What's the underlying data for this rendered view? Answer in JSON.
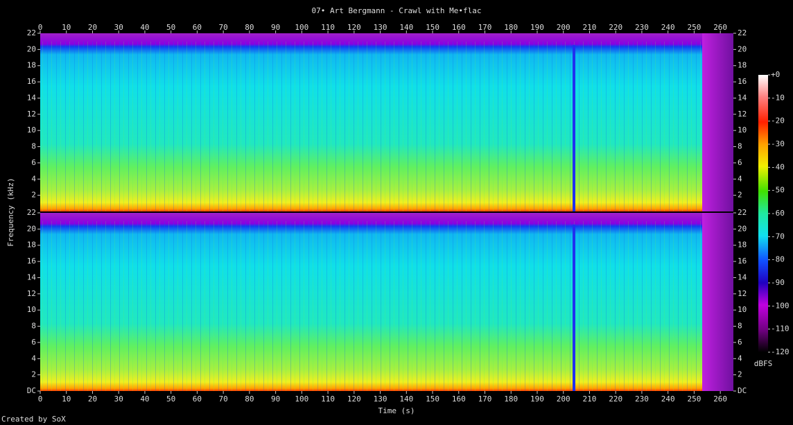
{
  "chart_data": {
    "type": "spectrogram",
    "title": "07• Art Bergmann - Crawl with Me•flac",
    "x_label": "Time (s)",
    "y_label": "Frequency (kHz)",
    "credit": "Created by SoX",
    "xlim": [
      0,
      265
    ],
    "xticks": [
      0,
      10,
      20,
      30,
      40,
      50,
      60,
      70,
      80,
      90,
      100,
      110,
      120,
      130,
      140,
      150,
      160,
      170,
      180,
      190,
      200,
      210,
      220,
      230,
      240,
      250,
      260
    ],
    "channels": [
      {
        "ylim": [
          0,
          22
        ],
        "yticks": [
          2,
          4,
          6,
          8,
          10,
          12,
          14,
          16,
          18,
          20,
          22
        ]
      },
      {
        "ylim": [
          0,
          22
        ],
        "yticks": [
          {
            "value": 0,
            "label": "DC"
          },
          2,
          4,
          6,
          8,
          10,
          12,
          14,
          16,
          18,
          20,
          22
        ]
      }
    ],
    "colorbar": {
      "label": "dBFS",
      "lim": [
        -120,
        0
      ],
      "ticks": [
        {
          "value": 0,
          "label": "+0"
        },
        -10,
        -20,
        -30,
        -40,
        -50,
        -60,
        -70,
        -80,
        -90,
        -100,
        -110,
        -120
      ]
    }
  }
}
